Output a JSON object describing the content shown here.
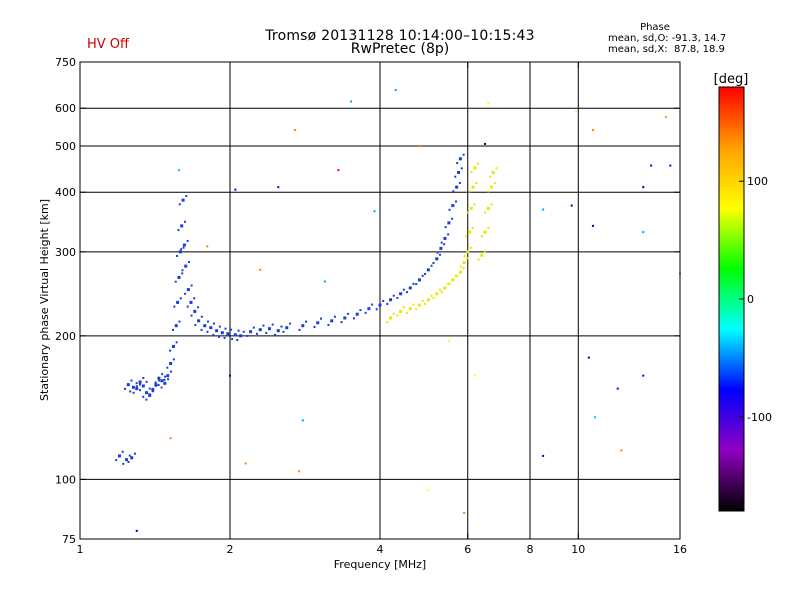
{
  "header": {
    "title": "Tromsø 20131128 10:14:00–10:15:43",
    "subtitle": "RwPretec (8p)",
    "hv_status": "HV Off",
    "hv_color": "#cc0000"
  },
  "phase_stats": {
    "heading": "Phase",
    "o_line": "mean, sd,O: -91.3, 14.7",
    "x_line": "mean, sd,X:  87.8, 18.9"
  },
  "chart_data": {
    "type": "scatter",
    "title": "Tromsø 20131128 10:14:00–10:15:43",
    "subtitle": "RwPretec (8p)",
    "xlabel": "Frequency [MHz]",
    "ylabel": "Stationary phase Virtual Height [km]",
    "x_scale": "log",
    "y_scale": "log",
    "xlim": [
      1,
      16
    ],
    "ylim": [
      75,
      750
    ],
    "x_ticks": [
      1,
      2,
      4,
      6,
      8,
      10,
      16
    ],
    "y_ticks": [
      75,
      100,
      200,
      300,
      400,
      500,
      600,
      750
    ],
    "x_gridlines": [
      2,
      4,
      6,
      8,
      10
    ],
    "y_gridlines": [
      100,
      200,
      300,
      400,
      500,
      600
    ],
    "colorbar": {
      "label": "[deg]",
      "range": [
        -180,
        180
      ],
      "ticks": [
        100,
        0,
        -100
      ],
      "colors": [
        "#ff0000",
        "#ffa000",
        "#ffff00",
        "#00ff00",
        "#00ffff",
        "#0000ff",
        "#9000c0",
        "#000000"
      ]
    },
    "series": [
      {
        "color": "#1a3cd8",
        "points": [
          [
            1.25,
            158
          ],
          [
            1.28,
            156
          ],
          [
            1.3,
            155
          ],
          [
            1.32,
            160
          ],
          [
            1.34,
            157
          ],
          [
            1.36,
            152
          ],
          [
            1.38,
            150
          ],
          [
            1.4,
            154
          ],
          [
            1.42,
            158
          ],
          [
            1.44,
            163
          ],
          [
            1.46,
            161
          ],
          [
            1.48,
            159
          ],
          [
            1.5,
            165
          ],
          [
            1.52,
            175
          ],
          [
            1.54,
            190
          ],
          [
            1.56,
            210
          ],
          [
            1.57,
            235
          ],
          [
            1.58,
            265
          ],
          [
            1.59,
            300
          ],
          [
            1.6,
            340
          ],
          [
            1.61,
            385
          ],
          [
            1.62,
            310
          ],
          [
            1.63,
            280
          ],
          [
            1.65,
            250
          ],
          [
            1.67,
            235
          ],
          [
            1.7,
            225
          ],
          [
            1.73,
            215
          ],
          [
            1.78,
            210
          ],
          [
            1.83,
            208
          ],
          [
            1.88,
            205
          ],
          [
            1.93,
            203
          ],
          [
            1.98,
            202
          ],
          [
            2.05,
            201
          ],
          [
            2.1,
            200
          ],
          [
            2.2,
            204
          ],
          [
            2.3,
            206
          ],
          [
            2.4,
            207
          ],
          [
            2.5,
            205
          ],
          [
            2.6,
            208
          ],
          [
            2.8,
            210
          ],
          [
            3.0,
            213
          ],
          [
            3.2,
            215
          ],
          [
            3.4,
            218
          ],
          [
            3.6,
            222
          ],
          [
            3.8,
            228
          ],
          [
            4.0,
            232
          ],
          [
            4.2,
            238
          ],
          [
            4.4,
            245
          ],
          [
            4.6,
            252
          ],
          [
            4.8,
            262
          ],
          [
            5.0,
            275
          ],
          [
            5.2,
            290
          ],
          [
            5.3,
            305
          ],
          [
            5.4,
            320
          ],
          [
            5.5,
            345
          ],
          [
            5.6,
            375
          ],
          [
            5.7,
            410
          ],
          [
            5.75,
            440
          ],
          [
            5.8,
            470
          ],
          [
            1.2,
            112
          ],
          [
            1.24,
            110
          ],
          [
            1.27,
            111
          ]
        ]
      },
      {
        "color": "#e8e800",
        "points": [
          [
            4.2,
            218
          ],
          [
            4.4,
            225
          ],
          [
            4.6,
            228
          ],
          [
            4.8,
            232
          ],
          [
            5.0,
            238
          ],
          [
            5.2,
            245
          ],
          [
            5.4,
            252
          ],
          [
            5.6,
            262
          ],
          [
            5.8,
            272
          ],
          [
            5.9,
            285
          ],
          [
            6.0,
            300
          ],
          [
            6.05,
            330
          ],
          [
            6.1,
            370
          ],
          [
            6.15,
            410
          ],
          [
            6.2,
            450
          ],
          [
            6.4,
            295
          ],
          [
            6.5,
            330
          ],
          [
            6.6,
            370
          ],
          [
            6.7,
            410
          ],
          [
            6.75,
            440
          ]
        ]
      }
    ],
    "scatter_noise": [
      {
        "x": 1.3,
        "y": 78,
        "color": "#000080"
      },
      {
        "x": 1.52,
        "y": 122,
        "color": "#ff8000"
      },
      {
        "x": 1.58,
        "y": 445,
        "color": "#00c0ff"
      },
      {
        "x": 1.8,
        "y": 308,
        "color": "#ff8000"
      },
      {
        "x": 2.0,
        "y": 165,
        "color": "#000080"
      },
      {
        "x": 2.05,
        "y": 405,
        "color": "#0000ff"
      },
      {
        "x": 2.15,
        "y": 108,
        "color": "#ff8000"
      },
      {
        "x": 2.3,
        "y": 275,
        "color": "#ff8000"
      },
      {
        "x": 2.5,
        "y": 410,
        "color": "#0000ff"
      },
      {
        "x": 2.7,
        "y": 540,
        "color": "#ff8000"
      },
      {
        "x": 2.75,
        "y": 104,
        "color": "#ff8000"
      },
      {
        "x": 2.8,
        "y": 133,
        "color": "#00a0ff"
      },
      {
        "x": 3.1,
        "y": 260,
        "color": "#00a0ff"
      },
      {
        "x": 3.3,
        "y": 445,
        "color": "#ff0000"
      },
      {
        "x": 3.5,
        "y": 620,
        "color": "#00a0ff"
      },
      {
        "x": 3.9,
        "y": 365,
        "color": "#00a0ff"
      },
      {
        "x": 4.3,
        "y": 655,
        "color": "#00a0ff"
      },
      {
        "x": 4.8,
        "y": 500,
        "color": "#ff8000"
      },
      {
        "x": 5.0,
        "y": 95,
        "color": "#ffff00"
      },
      {
        "x": 5.5,
        "y": 195,
        "color": "#ffff00"
      },
      {
        "x": 5.9,
        "y": 85,
        "color": "#ff8000"
      },
      {
        "x": 6.2,
        "y": 165,
        "color": "#ffff00"
      },
      {
        "x": 6.5,
        "y": 505,
        "color": "#000080"
      },
      {
        "x": 6.6,
        "y": 615,
        "color": "#ffff00"
      },
      {
        "x": 8.5,
        "y": 112,
        "color": "#0000ff"
      },
      {
        "x": 8.5,
        "y": 368,
        "color": "#00a0ff"
      },
      {
        "x": 9.7,
        "y": 375,
        "color": "#000080"
      },
      {
        "x": 9.9,
        "y": 590,
        "color": "#ffff00"
      },
      {
        "x": 10.5,
        "y": 180,
        "color": "#000080"
      },
      {
        "x": 10.7,
        "y": 540,
        "color": "#ff8000"
      },
      {
        "x": 10.7,
        "y": 340,
        "color": "#000080"
      },
      {
        "x": 10.8,
        "y": 135,
        "color": "#00c0ff"
      },
      {
        "x": 12.0,
        "y": 155,
        "color": "#0000ff"
      },
      {
        "x": 12.2,
        "y": 115,
        "color": "#ff8000"
      },
      {
        "x": 13.5,
        "y": 165,
        "color": "#0000ff"
      },
      {
        "x": 13.5,
        "y": 410,
        "color": "#000080"
      },
      {
        "x": 13.5,
        "y": 330,
        "color": "#00a0ff"
      },
      {
        "x": 14.0,
        "y": 455,
        "color": "#0000ff"
      },
      {
        "x": 15.0,
        "y": 575,
        "color": "#ffa000"
      },
      {
        "x": 15.3,
        "y": 455,
        "color": "#0000ff"
      },
      {
        "x": 16.0,
        "y": 270,
        "color": "#ff8000"
      }
    ]
  }
}
